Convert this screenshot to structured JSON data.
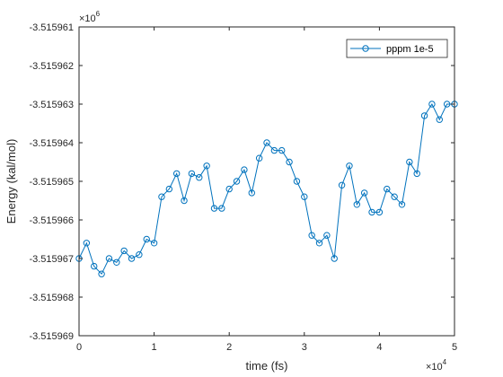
{
  "chart_data": {
    "type": "line",
    "xlabel": "time (fs)",
    "ylabel": "Energy (kal/mol)",
    "x_exponent_label": "×10",
    "x_exponent_power": "4",
    "y_exponent_label": "×10",
    "y_exponent_power": "6",
    "xlim": [
      0,
      50000
    ],
    "ylim": [
      -3515969,
      -3515961
    ],
    "x_ticks": [
      0,
      10000,
      20000,
      30000,
      40000,
      50000
    ],
    "x_tick_labels": [
      "0",
      "1",
      "2",
      "3",
      "4",
      "5"
    ],
    "y_ticks": [
      -3515961,
      -3515962,
      -3515963,
      -3515964,
      -3515965,
      -3515966,
      -3515967,
      -3515968,
      -3515969
    ],
    "y_tick_labels": [
      "-3.515961",
      "-3.515962",
      "-3.515963",
      "-3.515964",
      "-3.515965",
      "-3.515966",
      "-3.515967",
      "-3.515968",
      "-3.515969"
    ],
    "grid": false,
    "legend_position": "top-right",
    "series": [
      {
        "name": "pppm 1e-5",
        "color": "#0072BD",
        "marker": "circle",
        "x": [
          0,
          1000,
          2000,
          3000,
          4000,
          5000,
          6000,
          7000,
          8000,
          9000,
          10000,
          11000,
          12000,
          13000,
          14000,
          15000,
          16000,
          17000,
          18000,
          19000,
          20000,
          21000,
          22000,
          23000,
          24000,
          25000,
          26000,
          27000,
          28000,
          29000,
          30000,
          31000,
          32000,
          33000,
          34000,
          35000,
          36000,
          37000,
          38000,
          39000,
          40000,
          41000,
          42000,
          43000,
          44000,
          45000,
          46000,
          47000,
          48000,
          49000,
          50000
        ],
        "y": [
          -3515967.0,
          -3515966.6,
          -3515967.2,
          -3515967.4,
          -3515967.0,
          -3515967.1,
          -3515966.8,
          -3515967.0,
          -3515966.9,
          -3515966.5,
          -3515966.6,
          -3515965.4,
          -3515965.2,
          -3515964.8,
          -3515965.5,
          -3515964.8,
          -3515964.9,
          -3515964.6,
          -3515965.7,
          -3515965.7,
          -3515965.2,
          -3515965.0,
          -3515964.7,
          -3515965.3,
          -3515964.4,
          -3515964.0,
          -3515964.2,
          -3515964.2,
          -3515964.5,
          -3515965.0,
          -3515965.4,
          -3515966.4,
          -3515966.6,
          -3515966.4,
          -3515967.0,
          -3515965.1,
          -3515964.6,
          -3515965.6,
          -3515965.3,
          -3515965.8,
          -3515965.8,
          -3515965.2,
          -3515965.4,
          -3515965.6,
          -3515964.5,
          -3515964.8,
          -3515963.3,
          -3515963.0,
          -3515963.4,
          -3515963.0,
          -3515963.0
        ]
      }
    ]
  }
}
